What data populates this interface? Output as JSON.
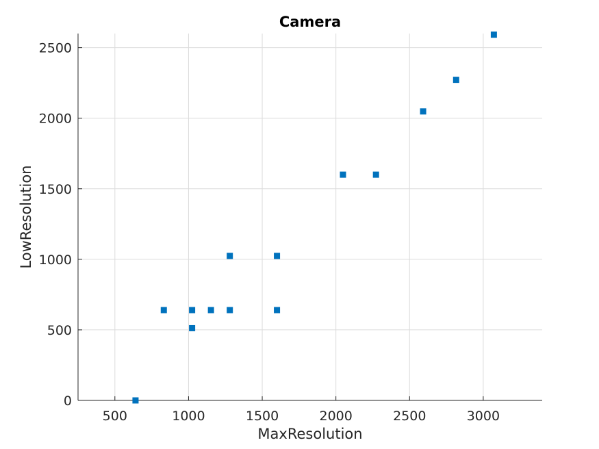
{
  "chart_data": {
    "type": "scatter",
    "title": "Camera",
    "xlabel": "MaxResolution",
    "ylabel": "LowResolution",
    "xlim": [
      250,
      3400
    ],
    "ylim": [
      0,
      2600
    ],
    "xticks": [
      500,
      1000,
      1500,
      2000,
      2500,
      3000
    ],
    "yticks": [
      0,
      500,
      1000,
      1500,
      2000,
      2500
    ],
    "grid": true,
    "marker": "square",
    "color": "#0072BD",
    "series": [
      {
        "points": [
          {
            "x": 640,
            "y": 0
          },
          {
            "x": 832,
            "y": 640
          },
          {
            "x": 1024,
            "y": 512
          },
          {
            "x": 1024,
            "y": 640
          },
          {
            "x": 1152,
            "y": 640
          },
          {
            "x": 1280,
            "y": 640
          },
          {
            "x": 1280,
            "y": 1024
          },
          {
            "x": 1600,
            "y": 640
          },
          {
            "x": 1600,
            "y": 1024
          },
          {
            "x": 2048,
            "y": 1600
          },
          {
            "x": 2272,
            "y": 1600
          },
          {
            "x": 2592,
            "y": 2048
          },
          {
            "x": 2816,
            "y": 2272
          },
          {
            "x": 3072,
            "y": 2592
          }
        ]
      }
    ]
  }
}
